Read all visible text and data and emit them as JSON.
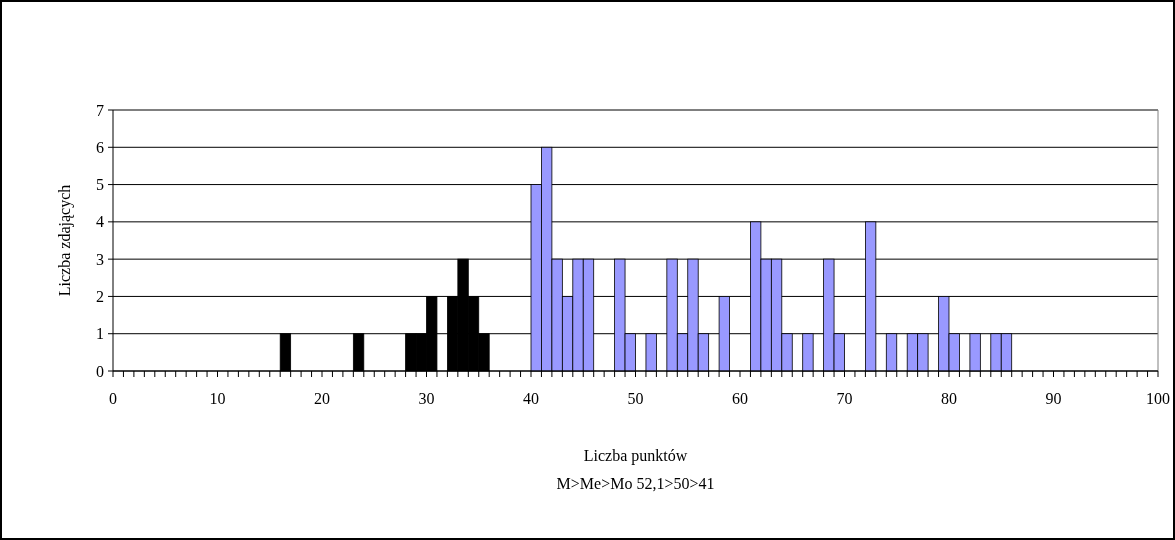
{
  "chart_data": {
    "type": "histogram",
    "xlabel": "Liczba punktów",
    "ylabel": "Liczba zdających",
    "annotations": [
      "M>Me>Mo  52,1>50>41"
    ],
    "bins": [
      0,
      1,
      2,
      3,
      4,
      5,
      6,
      7,
      8,
      9,
      10,
      11,
      12,
      13,
      14,
      15,
      16,
      17,
      18,
      19,
      20,
      21,
      22,
      23,
      24,
      25,
      26,
      27,
      28,
      29,
      30,
      31,
      32,
      33,
      34,
      35,
      36,
      37,
      38,
      39,
      40,
      41,
      42,
      43,
      44,
      45,
      46,
      47,
      48,
      49,
      50,
      51,
      52,
      53,
      54,
      55,
      56,
      57,
      58,
      59,
      60,
      61,
      62,
      63,
      64,
      65,
      66,
      67,
      68,
      69,
      70,
      71,
      72,
      73,
      74,
      75,
      76,
      77,
      78,
      79,
      80,
      81,
      82,
      83,
      84,
      85,
      86,
      87,
      88,
      89,
      90,
      91,
      92,
      93,
      94,
      95,
      96,
      97,
      98,
      99,
      100
    ],
    "series": [
      {
        "color": "#000000",
        "values": [
          0,
          0,
          0,
          0,
          0,
          0,
          0,
          0,
          0,
          0,
          0,
          0,
          0,
          0,
          0,
          0,
          1,
          0,
          0,
          0,
          0,
          0,
          0,
          1,
          0,
          0,
          0,
          0,
          1,
          1,
          2,
          0,
          2,
          3,
          2,
          1,
          0,
          0,
          0,
          0,
          null,
          null,
          null,
          null,
          null,
          null,
          null,
          null,
          null,
          null,
          null,
          null,
          null,
          null,
          null,
          null,
          null,
          null,
          null,
          null,
          null,
          null,
          null,
          null,
          null,
          null,
          null,
          null,
          null,
          null,
          null,
          null,
          null,
          null,
          null,
          null,
          null,
          null,
          null,
          null,
          null,
          null,
          null,
          null,
          null,
          null,
          null,
          null,
          null,
          null,
          null,
          null,
          null,
          null,
          null,
          null,
          null,
          null,
          null,
          null
        ]
      },
      {
        "color": "#9999ff",
        "values": [
          null,
          null,
          null,
          null,
          null,
          null,
          null,
          null,
          null,
          null,
          null,
          null,
          null,
          null,
          null,
          null,
          null,
          null,
          null,
          null,
          null,
          null,
          null,
          null,
          null,
          null,
          null,
          null,
          null,
          null,
          null,
          null,
          null,
          null,
          null,
          null,
          null,
          null,
          null,
          null,
          5,
          6,
          3,
          2,
          3,
          3,
          0,
          0,
          3,
          1,
          0,
          1,
          0,
          3,
          1,
          3,
          1,
          0,
          2,
          0,
          0,
          4,
          3,
          3,
          1,
          0,
          1,
          0,
          3,
          1,
          0,
          0,
          4,
          0,
          1,
          0,
          1,
          1,
          0,
          2,
          1,
          0,
          1,
          0,
          1,
          1,
          0,
          0,
          0,
          0,
          0,
          0,
          0,
          0,
          0,
          0,
          0,
          0,
          0,
          0
        ]
      }
    ],
    "xlim": [
      0,
      100
    ],
    "xticks": [
      0,
      {
        "value": 1,
        "label": null
      },
      {
        "value": 2,
        "label": null
      },
      {
        "value": 3,
        "label": null
      },
      {
        "value": 4,
        "label": null
      },
      {
        "value": 5,
        "label": null
      },
      {
        "value": 6,
        "label": null
      },
      {
        "value": 7,
        "label": null
      },
      {
        "value": 8,
        "label": null
      },
      {
        "value": 9,
        "label": null
      },
      10,
      {
        "value": 11,
        "label": null
      },
      {
        "value": 12,
        "label": null
      },
      {
        "value": 13,
        "label": null
      },
      {
        "value": 14,
        "label": null
      },
      {
        "value": 15,
        "label": null
      },
      {
        "value": 16,
        "label": null
      },
      {
        "value": 17,
        "label": null
      },
      {
        "value": 18,
        "label": null
      },
      {
        "value": 19,
        "label": null
      },
      20,
      {
        "value": 21,
        "label": null
      },
      {
        "value": 22,
        "label": null
      },
      {
        "value": 23,
        "label": null
      },
      {
        "value": 24,
        "label": null
      },
      {
        "value": 25,
        "label": null
      },
      {
        "value": 26,
        "label": null
      },
      {
        "value": 27,
        "label": null
      },
      {
        "value": 28,
        "label": null
      },
      {
        "value": 29,
        "label": null
      },
      30,
      {
        "value": 31,
        "label": null
      },
      {
        "value": 32,
        "label": null
      },
      {
        "value": 33,
        "label": null
      },
      {
        "value": 34,
        "label": null
      },
      {
        "value": 35,
        "label": null
      },
      {
        "value": 36,
        "label": null
      },
      {
        "value": 37,
        "label": null
      },
      {
        "value": 38,
        "label": null
      },
      {
        "value": 39,
        "label": null
      },
      40,
      {
        "value": 41,
        "label": null
      },
      {
        "value": 42,
        "label": null
      },
      {
        "value": 43,
        "label": null
      },
      {
        "value": 44,
        "label": null
      },
      {
        "value": 45,
        "label": null
      },
      {
        "value": 46,
        "label": null
      },
      {
        "value": 47,
        "label": null
      },
      {
        "value": 48,
        "label": null
      },
      {
        "value": 49,
        "label": null
      },
      50,
      {
        "value": 51,
        "label": null
      },
      {
        "value": 52,
        "label": null
      },
      {
        "value": 53,
        "label": null
      },
      {
        "value": 54,
        "label": null
      },
      {
        "value": 55,
        "label": null
      },
      {
        "value": 56,
        "label": null
      },
      {
        "value": 57,
        "label": null
      },
      {
        "value": 58,
        "label": null
      },
      {
        "value": 59,
        "label": null
      },
      60,
      {
        "value": 61,
        "label": null
      },
      {
        "value": 62,
        "label": null
      },
      {
        "value": 63,
        "label": null
      },
      {
        "value": 64,
        "label": null
      },
      {
        "value": 65,
        "label": null
      },
      {
        "value": 66,
        "label": null
      },
      {
        "value": 67,
        "label": null
      },
      {
        "value": 68,
        "label": null
      },
      {
        "value": 69,
        "label": null
      },
      70,
      {
        "value": 71,
        "label": null
      },
      {
        "value": 72,
        "label": null
      },
      {
        "value": 73,
        "label": null
      },
      {
        "value": 74,
        "label": null
      },
      {
        "value": 75,
        "label": null
      },
      {
        "value": 76,
        "label": null
      },
      {
        "value": 77,
        "label": null
      },
      {
        "value": 78,
        "label": null
      },
      {
        "value": 79,
        "label": null
      },
      80,
      {
        "value": 81,
        "label": null
      },
      {
        "value": 82,
        "label": null
      },
      {
        "value": 83,
        "label": null
      },
      {
        "value": 84,
        "label": null
      },
      {
        "value": 85,
        "label": null
      },
      {
        "value": 86,
        "label": null
      },
      {
        "value": 87,
        "label": null
      },
      {
        "value": 88,
        "label": null
      },
      {
        "value": 89,
        "label": null
      },
      90,
      {
        "value": 91,
        "label": null
      },
      {
        "value": 92,
        "label": null
      },
      {
        "value": 93,
        "label": null
      },
      {
        "value": 94,
        "label": null
      },
      {
        "value": 95,
        "label": null
      },
      {
        "value": 96,
        "label": null
      },
      {
        "value": 97,
        "label": null
      },
      {
        "value": 98,
        "label": null
      },
      {
        "value": 99,
        "label": null
      },
      100
    ],
    "ylim": [
      0,
      7
    ],
    "yticks": [
      0,
      1,
      2,
      3,
      4,
      5,
      6,
      7
    ],
    "grid": "y"
  }
}
